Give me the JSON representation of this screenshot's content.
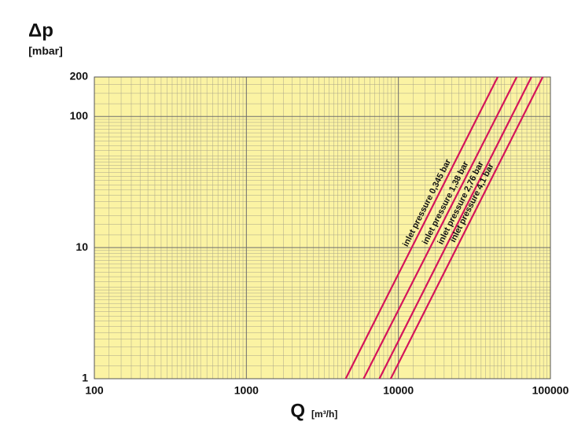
{
  "chart_data": {
    "type": "line",
    "y_label": "Δp",
    "y_unit": "[mbar]",
    "x_label": "Q",
    "x_unit": "[m³/h]",
    "xscale": "log",
    "yscale": "log",
    "grid": true,
    "xlim": [
      100,
      100000
    ],
    "ylim": [
      1,
      200
    ],
    "xticks": [
      100,
      1000,
      10000,
      100000
    ],
    "yticks": [
      1,
      10,
      100,
      200
    ],
    "background": "#fbf3a3",
    "series": [
      {
        "name": "inlet pressure 0,345 bar",
        "color": "#d4145a",
        "x": [
          4500,
          45000
        ],
        "values": [
          1,
          200
        ]
      },
      {
        "name": "inlet pressure 1,38 bar",
        "color": "#d4145a",
        "x": [
          5900,
          60000
        ],
        "values": [
          1,
          200
        ]
      },
      {
        "name": "inlet pressure 2,76 bar",
        "color": "#d4145a",
        "x": [
          7500,
          75000
        ],
        "values": [
          1,
          200
        ]
      },
      {
        "name": "inlet pressure 4,1 bar",
        "color": "#d4145a",
        "x": [
          8900,
          89000
        ],
        "values": [
          1,
          200
        ]
      }
    ]
  }
}
